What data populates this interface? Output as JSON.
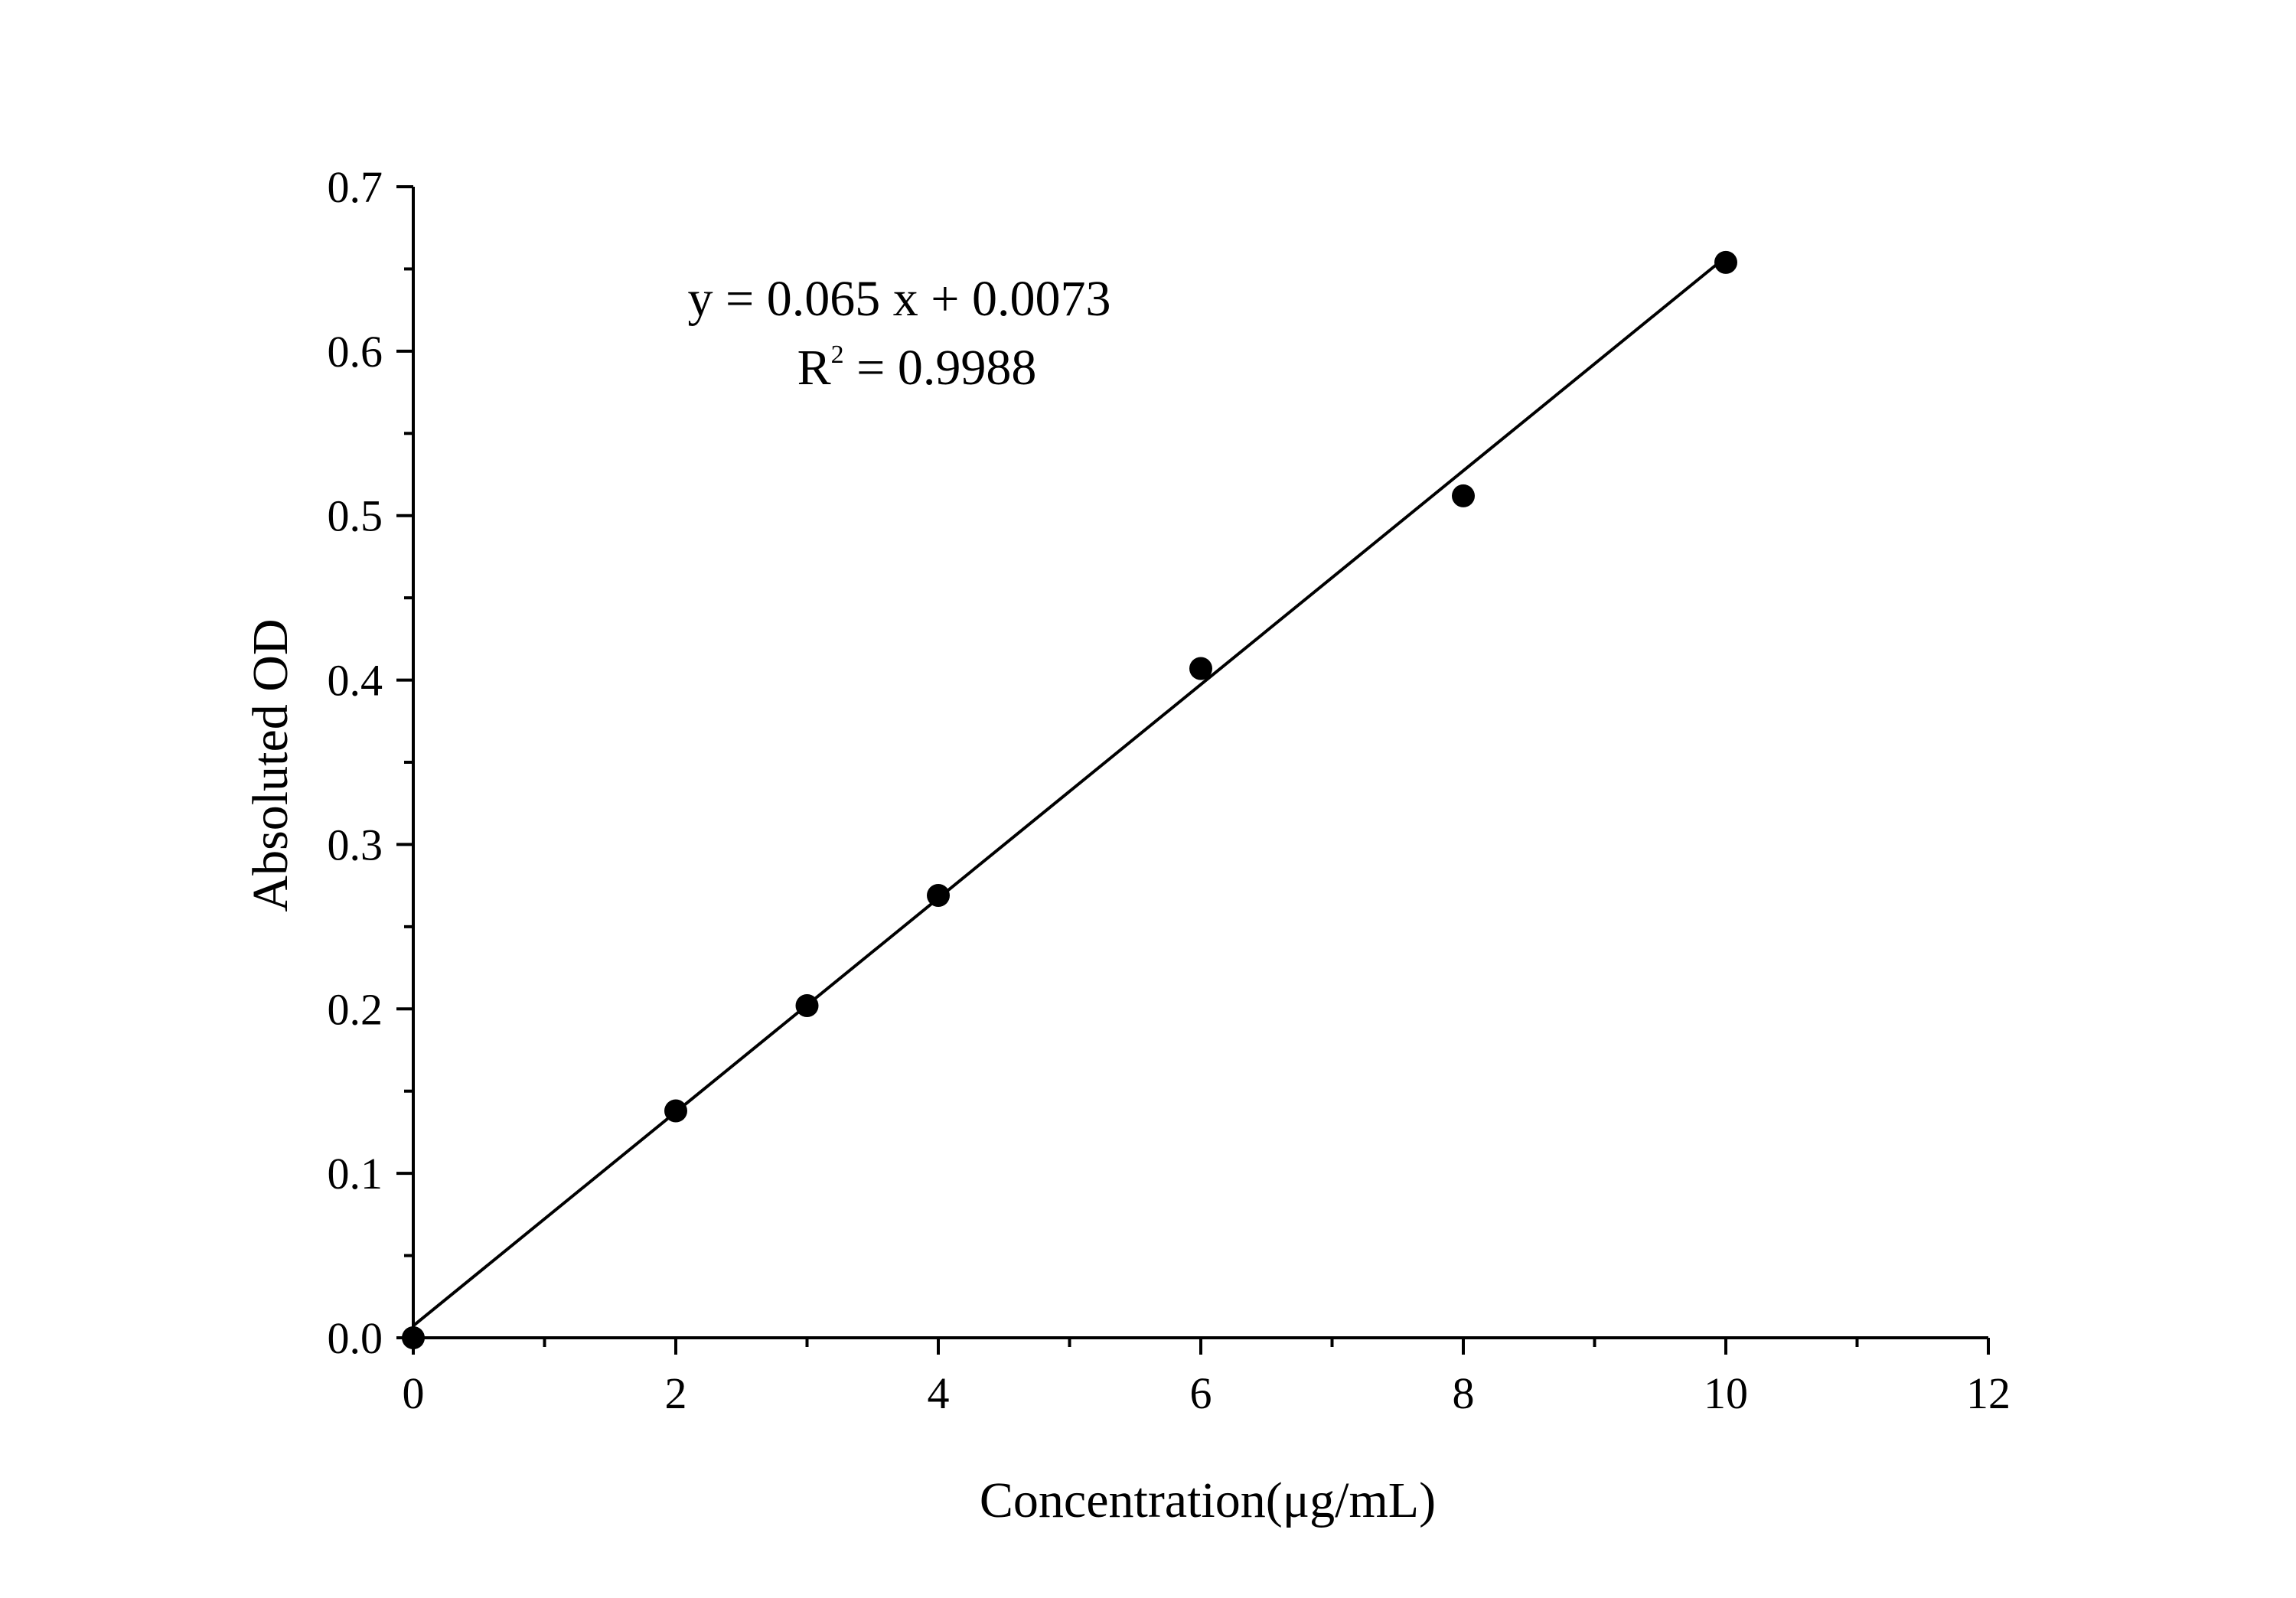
{
  "chart_data": {
    "type": "scatter",
    "title": "",
    "xlabel": "Concentration(μg/mL)",
    "ylabel": "Absoluted OD",
    "xlim": [
      0,
      12
    ],
    "ylim": [
      0,
      0.7
    ],
    "x_ticks": [
      "0",
      "2",
      "4",
      "6",
      "8",
      "10",
      "12"
    ],
    "y_ticks": [
      "0.0",
      "0.1",
      "0.2",
      "0.3",
      "0.4",
      "0.5",
      "0.6",
      "0.7"
    ],
    "grid": false,
    "legend": false,
    "points": [
      {
        "x": 0,
        "y": 0.0
      },
      {
        "x": 2,
        "y": 0.138
      },
      {
        "x": 3,
        "y": 0.202
      },
      {
        "x": 4,
        "y": 0.269
      },
      {
        "x": 6,
        "y": 0.407
      },
      {
        "x": 8,
        "y": 0.512
      },
      {
        "x": 10,
        "y": 0.654
      }
    ],
    "fit": {
      "type": "linear",
      "slope": 0.065,
      "intercept": 0.0073,
      "x_range": [
        0,
        10
      ]
    },
    "annotation": {
      "equation": "y = 0.065 x + 0.0073",
      "r2_prefix": "R",
      "r2_sup": "2",
      "r2_suffix": " = 0.9988"
    },
    "marker_color": "#000000",
    "line_color": "#000000"
  }
}
